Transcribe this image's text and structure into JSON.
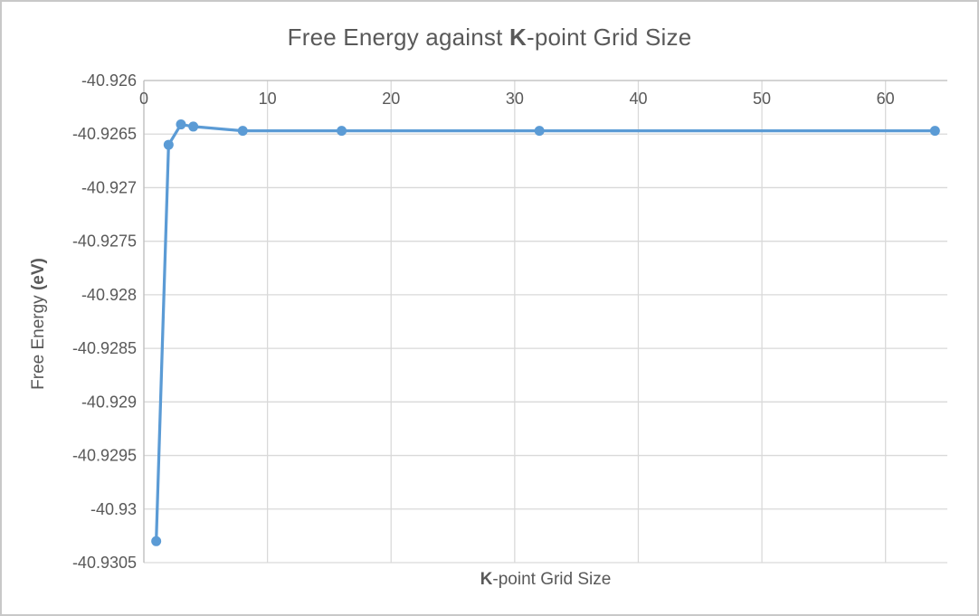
{
  "chart_data": {
    "type": "line",
    "title": {
      "prefix": "Free Energy against ",
      "bold": "K",
      "suffix": "-point Grid Size",
      "full": "Free Energy against K-point Grid Size"
    },
    "xlabel": {
      "bold": "K",
      "suffix": "-point Grid Size",
      "full": "K-point Grid Size"
    },
    "ylabel": {
      "prefix": "Free Energy ",
      "bold": "(eV)",
      "full": "Free Energy (eV)"
    },
    "points": [
      {
        "x": 1,
        "y": -40.9303
      },
      {
        "x": 2,
        "y": -40.9266
      },
      {
        "x": 3,
        "y": -40.92641
      },
      {
        "x": 4,
        "y": -40.92643
      },
      {
        "x": 8,
        "y": -40.92647
      },
      {
        "x": 16,
        "y": -40.92647
      },
      {
        "x": 32,
        "y": -40.92647
      },
      {
        "x": 64,
        "y": -40.92647
      }
    ],
    "xlim": [
      0,
      65
    ],
    "ylim": [
      -40.9305,
      -40.926
    ],
    "x_ticks": [
      0,
      10,
      20,
      30,
      40,
      50,
      60
    ],
    "x_tick_labels": [
      "0",
      "10",
      "20",
      "30",
      "40",
      "50",
      "60"
    ],
    "y_ticks": [
      -40.926,
      -40.9265,
      -40.927,
      -40.9275,
      -40.928,
      -40.9285,
      -40.929,
      -40.9295,
      -40.93,
      -40.9305
    ],
    "y_tick_labels": [
      "-40.926",
      "-40.9265",
      "-40.927",
      "-40.9275",
      "-40.928",
      "-40.9285",
      "-40.929",
      "-40.9295",
      "-40.93",
      "-40.9305"
    ],
    "grid": true,
    "legend": "none",
    "x_axis_position": "top",
    "colors": {
      "line": "#5B9BD5",
      "marker": "#5B9BD5",
      "gridline": "#D9D9D9",
      "axis_line": "#BFBFBF",
      "text": "#595959",
      "background": "#FFFFFF",
      "frame_border": "#C8C8C8"
    }
  }
}
